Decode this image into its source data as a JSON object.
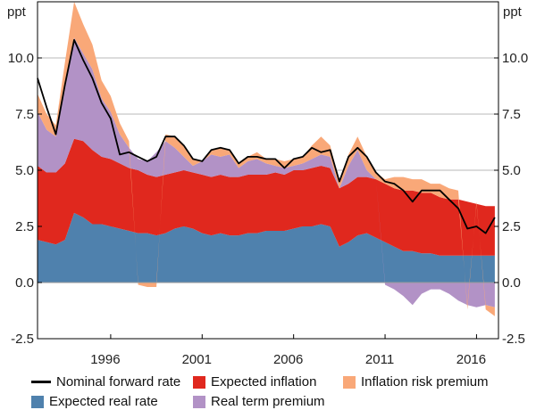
{
  "chart_data": {
    "type": "area",
    "title": "",
    "y_unit_left": "ppt",
    "y_unit_right": "ppt",
    "ylim": [
      -2.5,
      12.5
    ],
    "yticks": [
      -2.5,
      0.0,
      2.5,
      5.0,
      7.5,
      10.0
    ],
    "ytick_labels": [
      "-2.5",
      "0.0",
      "2.5",
      "5.0",
      "7.5",
      "10.0"
    ],
    "xlim": [
      1992.0,
      2017.2
    ],
    "xticks": [
      1996,
      2001,
      2006,
      2011,
      2016
    ],
    "xtick_labels": [
      "1996",
      "2001",
      "2006",
      "2011",
      "2016"
    ],
    "grid": true,
    "x": [
      1992.0,
      1992.5,
      1993.0,
      1993.5,
      1994.0,
      1994.5,
      1995.0,
      1995.5,
      1996.0,
      1996.5,
      1997.0,
      1997.5,
      1998.0,
      1998.5,
      1999.0,
      1999.5,
      2000.0,
      2000.5,
      2001.0,
      2001.5,
      2002.0,
      2002.5,
      2003.0,
      2003.5,
      2004.0,
      2004.5,
      2005.0,
      2005.5,
      2006.0,
      2006.5,
      2007.0,
      2007.5,
      2008.0,
      2008.5,
      2009.0,
      2009.5,
      2010.0,
      2010.5,
      2011.0,
      2011.5,
      2012.0,
      2012.5,
      2013.0,
      2013.5,
      2014.0,
      2014.5,
      2015.0,
      2015.5,
      2016.0,
      2016.5,
      2017.0
    ],
    "series": [
      {
        "name": "Expected real rate",
        "color": "#4f81ad",
        "values": [
          1.9,
          1.8,
          1.7,
          1.9,
          3.1,
          2.9,
          2.6,
          2.6,
          2.5,
          2.4,
          2.3,
          2.2,
          2.2,
          2.1,
          2.2,
          2.4,
          2.5,
          2.4,
          2.2,
          2.1,
          2.2,
          2.1,
          2.1,
          2.2,
          2.2,
          2.3,
          2.3,
          2.3,
          2.4,
          2.5,
          2.5,
          2.6,
          2.5,
          1.6,
          1.8,
          2.1,
          2.2,
          2.0,
          1.8,
          1.6,
          1.4,
          1.4,
          1.3,
          1.3,
          1.2,
          1.2,
          1.2,
          1.2,
          1.2,
          1.2,
          1.2
        ]
      },
      {
        "name": "Expected inflation",
        "color": "#e0281e",
        "values": [
          3.3,
          3.1,
          3.2,
          3.4,
          3.3,
          3.4,
          3.3,
          3.0,
          3.0,
          2.9,
          2.8,
          2.8,
          2.6,
          2.6,
          2.6,
          2.5,
          2.5,
          2.5,
          2.6,
          2.6,
          2.6,
          2.6,
          2.6,
          2.6,
          2.6,
          2.5,
          2.6,
          2.5,
          2.6,
          2.5,
          2.6,
          2.6,
          2.6,
          2.6,
          2.6,
          2.6,
          2.5,
          2.6,
          2.6,
          2.6,
          2.7,
          2.7,
          2.7,
          2.7,
          2.6,
          2.5,
          2.5,
          2.4,
          2.3,
          2.2,
          2.2
        ]
      },
      {
        "name": "Real term premium",
        "color": "#b292c6",
        "values": [
          2.4,
          1.9,
          1.6,
          3.3,
          4.5,
          3.9,
          3.6,
          2.6,
          2.1,
          1.3,
          0.9,
          0.5,
          0.6,
          1.1,
          1.5,
          1.1,
          0.6,
          0.3,
          0.6,
          1.0,
          0.8,
          1.0,
          0.4,
          0.6,
          0.7,
          0.5,
          0.3,
          0.3,
          0.2,
          0.3,
          0.4,
          0.5,
          0.5,
          0.0,
          0.8,
          1.2,
          0.3,
          0.0,
          -0.1,
          -0.3,
          -0.6,
          -1.0,
          -0.5,
          -0.3,
          -0.3,
          -0.5,
          -0.8,
          -1.0,
          -1.1,
          -1.0,
          -1.1
        ]
      },
      {
        "name": "Inflation risk premium",
        "color": "#f9a878",
        "values": [
          0.8,
          0.7,
          0.5,
          1.2,
          1.6,
          1.3,
          1.1,
          0.8,
          0.7,
          0.5,
          0.3,
          -0.1,
          -0.2,
          -0.2,
          0.3,
          0.5,
          0.5,
          0.3,
          0.0,
          0.2,
          0.4,
          0.2,
          0.2,
          0.2,
          0.3,
          0.2,
          0.3,
          0.3,
          0.3,
          0.3,
          0.6,
          0.8,
          0.5,
          0.3,
          0.5,
          0.6,
          0.6,
          0.3,
          0.2,
          0.5,
          0.6,
          0.5,
          0.6,
          0.4,
          0.6,
          0.5,
          0.4,
          -0.2,
          0.1,
          -0.2,
          -0.4
        ]
      },
      {
        "name": "Nominal forward rate",
        "color": "#000000",
        "kind": "line",
        "values": [
          9.1,
          7.8,
          6.6,
          8.8,
          10.8,
          9.9,
          9.1,
          8.0,
          7.3,
          5.7,
          5.8,
          5.6,
          5.4,
          5.6,
          6.5,
          6.5,
          6.1,
          5.5,
          5.4,
          5.9,
          6.0,
          5.9,
          5.3,
          5.6,
          5.6,
          5.5,
          5.5,
          5.1,
          5.5,
          5.6,
          6.0,
          5.8,
          5.9,
          4.5,
          5.6,
          6.0,
          5.6,
          4.9,
          4.5,
          4.4,
          4.1,
          3.6,
          4.1,
          4.1,
          4.1,
          3.7,
          3.3,
          2.4,
          2.5,
          2.2,
          2.9
        ]
      }
    ],
    "legend": {
      "placement": "bottom",
      "entries": [
        "Nominal forward rate",
        "Expected inflation",
        "Inflation risk premium",
        "Expected real rate",
        "Real term premium"
      ]
    }
  }
}
